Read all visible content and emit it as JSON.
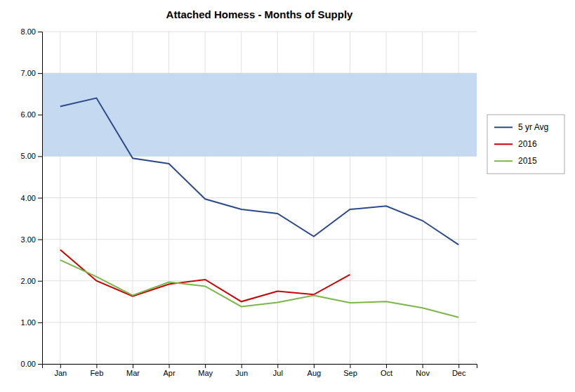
{
  "chart_data": {
    "type": "line",
    "title": "Attached Homess - Months of Supply",
    "categories": [
      "Jan",
      "Feb",
      "Mar",
      "Apr",
      "May",
      "Jun",
      "Jul",
      "Aug",
      "Sep",
      "Oct",
      "Nov",
      "Dec"
    ],
    "series": [
      {
        "name": "5 yr Avg",
        "color": "#2b4a8c",
        "values": [
          6.2,
          6.4,
          4.95,
          4.82,
          3.97,
          3.72,
          3.62,
          3.07,
          3.72,
          3.8,
          3.45,
          2.87
        ]
      },
      {
        "name": "2016",
        "color": "#cc0000",
        "values": [
          2.75,
          2.0,
          1.63,
          1.92,
          2.03,
          1.5,
          1.75,
          1.67,
          2.15,
          null,
          null,
          null
        ]
      },
      {
        "name": "2015",
        "color": "#7ab648",
        "values": [
          2.5,
          2.1,
          1.65,
          1.97,
          1.87,
          1.38,
          1.48,
          1.65,
          1.47,
          1.5,
          1.35,
          1.12
        ]
      }
    ],
    "shade": {
      "lower": 5.0,
      "upper": 7.0,
      "color": "#c5d9f1"
    },
    "ylim": [
      0.0,
      8.0
    ],
    "yticks": [
      {
        "value": 0.0,
        "label": "0.00"
      },
      {
        "value": 1.0,
        "label": "1.00"
      },
      {
        "value": 2.0,
        "label": "2.00"
      },
      {
        "value": 3.0,
        "label": "3.00"
      },
      {
        "value": 4.0,
        "label": "4.00"
      },
      {
        "value": 5.0,
        "label": "5.00"
      },
      {
        "value": 6.0,
        "label": "6.00"
      },
      {
        "value": 7.0,
        "label": "7.00"
      },
      {
        "value": 8.0,
        "label": "8.00"
      }
    ],
    "grid": true,
    "legend": "right"
  }
}
